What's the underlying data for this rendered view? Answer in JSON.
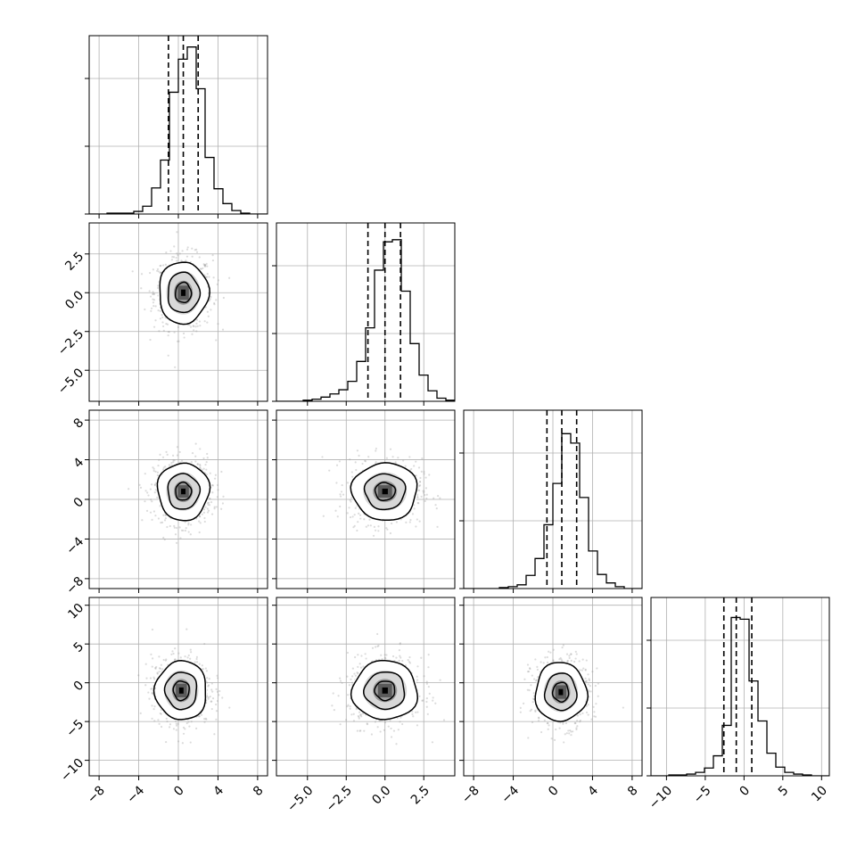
{
  "chart_data": {
    "type": "corner",
    "description_of_panels": "4x4 lower-triangular corner plot: 1D histograms on diagonal with 16/50/84 quantile dashed lines, 2D scatter + density + contours below diagonal",
    "parameters": [
      {
        "ticks": [
          -8,
          -4,
          0,
          4,
          8
        ],
        "tick_labels": [
          "−8",
          "−4",
          "0",
          "4",
          "8"
        ],
        "range": [
          -9.0,
          9.0
        ],
        "quantiles": [
          -1.0,
          0.5,
          2.0
        ],
        "hist": {
          "edges_start": -9.0,
          "bin_width": 0.9,
          "counts": [
            0,
            0,
            1,
            1,
            1,
            3,
            9,
            30,
            62,
            140,
            178,
            192,
            144,
            65,
            29,
            12,
            4,
            1,
            0,
            0
          ],
          "ymax": 205
        }
      },
      {
        "ticks": [
          -5.0,
          -2.5,
          0.0,
          2.5
        ],
        "tick_labels": [
          "−5.0",
          "−2.5",
          "0.0",
          "2.5"
        ],
        "range": [
          -7.0,
          4.5
        ],
        "quantiles": [
          -1.1,
          0.0,
          1.0
        ],
        "hist": {
          "edges_start": -7.0,
          "bin_width": 0.575,
          "counts": [
            0,
            0,
            0,
            1,
            2,
            4,
            7,
            11,
            19,
            38,
            70,
            125,
            152,
            154,
            105,
            55,
            25,
            10,
            3,
            1
          ],
          "ymax": 170
        }
      },
      {
        "ticks": [
          -8,
          -4,
          0,
          4,
          8
        ],
        "tick_labels": [
          "−8",
          "−4",
          "0",
          "4",
          "8"
        ],
        "range": [
          -9.0,
          9.0
        ],
        "quantiles": [
          -0.6,
          0.9,
          2.4
        ],
        "hist": {
          "edges_start": -9.0,
          "bin_width": 0.9,
          "counts": [
            0,
            0,
            0,
            0,
            1,
            2,
            4,
            14,
            32,
            68,
            112,
            165,
            155,
            97,
            40,
            15,
            6,
            2,
            0,
            0
          ],
          "ymax": 190
        }
      },
      {
        "ticks": [
          -10,
          -5,
          0,
          5,
          10
        ],
        "tick_labels": [
          "−10",
          "−5",
          "0",
          "5",
          "10"
        ],
        "range": [
          -12.0,
          11.0
        ],
        "quantiles": [
          -2.6,
          -1.0,
          1.0
        ],
        "hist": {
          "edges_start": -12.0,
          "bin_width": 1.15,
          "counts": [
            0,
            0,
            1,
            1,
            2,
            4,
            9,
            23,
            58,
            182,
            180,
            109,
            63,
            26,
            10,
            4,
            2,
            1,
            0,
            0
          ],
          "ymax": 205
        }
      }
    ],
    "pairs": [
      {
        "row": 1,
        "col": 0,
        "center": [
          0.5,
          0.0
        ],
        "contour_radii": [
          [
            0.8,
            0.65
          ],
          [
            1.6,
            1.3
          ],
          [
            2.5,
            2.0
          ]
        ]
      },
      {
        "row": 2,
        "col": 0,
        "center": [
          0.5,
          0.8
        ],
        "contour_radii": [
          [
            0.8,
            0.9
          ],
          [
            1.6,
            1.8
          ],
          [
            2.6,
            2.9
          ]
        ]
      },
      {
        "row": 2,
        "col": 1,
        "center": [
          0.0,
          0.8
        ],
        "contour_radii": [
          [
            0.65,
            0.9
          ],
          [
            1.3,
            1.8
          ],
          [
            2.1,
            2.9
          ]
        ]
      },
      {
        "row": 3,
        "col": 0,
        "center": [
          0.3,
          -1.0
        ],
        "contour_radii": [
          [
            0.8,
            1.25
          ],
          [
            1.6,
            2.4
          ],
          [
            2.6,
            3.8
          ]
        ]
      },
      {
        "row": 3,
        "col": 1,
        "center": [
          0.0,
          -1.0
        ],
        "contour_radii": [
          [
            0.65,
            1.25
          ],
          [
            1.3,
            2.4
          ],
          [
            2.1,
            3.8
          ]
        ]
      },
      {
        "row": 3,
        "col": 2,
        "center": [
          0.8,
          -1.2
        ],
        "contour_radii": [
          [
            0.8,
            1.25
          ],
          [
            1.6,
            2.4
          ],
          [
            2.6,
            3.8
          ]
        ]
      }
    ],
    "colors": {
      "axis": "#000000",
      "grid": "#b0b0b0",
      "scatter": "#9a9a9a",
      "contour": "#000000"
    },
    "grid": true
  }
}
